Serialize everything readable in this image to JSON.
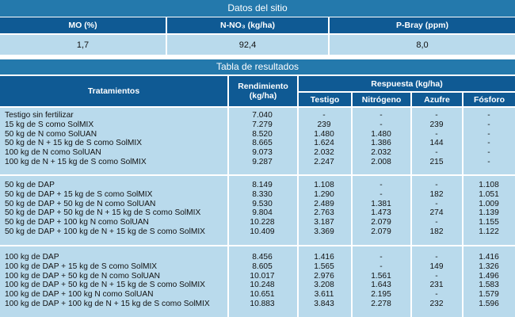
{
  "site": {
    "title": "Datos del sitio",
    "headers": [
      "MO (%)",
      "N-NO₃ (kg/ha)",
      "P-Bray (ppm)"
    ],
    "values": [
      "1,7",
      "92,4",
      "8,0"
    ]
  },
  "results": {
    "title": "Tabla de resultados",
    "col_tratamientos": "Tratamientos",
    "col_rendimiento": "Rendimiento (kg/ha)",
    "col_respuesta": "Respuesta (kg/ha)",
    "sub": [
      "Testigo",
      "Nitrógeno",
      "Azufre",
      "Fósforo"
    ],
    "groups": [
      [
        [
          "Testigo sin fertilizar",
          "7.040",
          "-",
          "-",
          "-",
          "-"
        ],
        [
          "15 kg de S como SolMIX",
          "7.279",
          "239",
          "-",
          "239",
          "-"
        ],
        [
          "50 kg de N como SolUAN",
          "8.520",
          "1.480",
          "1.480",
          "-",
          "-"
        ],
        [
          "50 kg de N + 15 kg de S como SolMIX",
          "8.665",
          "1.624",
          "1.386",
          "144",
          "-"
        ],
        [
          "100 kg de N como SolUAN",
          "9.073",
          "2.032",
          "2.032",
          "-",
          "-"
        ],
        [
          "100 kg de N + 15 kg de S como SolMIX",
          "9.287",
          "2.247",
          "2.008",
          "215",
          "-"
        ]
      ],
      [
        [
          "50 kg de DAP",
          "8.149",
          "1.108",
          "-",
          "-",
          "1.108"
        ],
        [
          "50 kg de DAP + 15 kg de S como SolMIX",
          "8.330",
          "1.290",
          "-",
          "182",
          "1.051"
        ],
        [
          "50 kg de DAP + 50 kg de N como SolUAN",
          "9.530",
          "2.489",
          "1.381",
          "-",
          "1.009"
        ],
        [
          "50 kg de DAP + 50 kg de N + 15 kg de S como SolMIX",
          "9.804",
          "2.763",
          "1.473",
          "274",
          "1.139"
        ],
        [
          "50 kg de DAP + 100 kg N como SolUAN",
          "10.228",
          "3.187",
          "2.079",
          "-",
          "1.155"
        ],
        [
          "50 kg de DAP + 100 kg de N + 15 kg de S como SolMIX",
          "10.409",
          "3.369",
          "2.079",
          "182",
          "1.122"
        ]
      ],
      [
        [
          "100 kg de DAP",
          "8.456",
          "1.416",
          "-",
          "-",
          "1.416"
        ],
        [
          "100 kg de DAP + 15 kg de S como SolMIX",
          "8.605",
          "1.565",
          "-",
          "149",
          "1.326"
        ],
        [
          "100 kg de DAP + 50 kg de N como SolUAN",
          "10.017",
          "2.976",
          "1.561",
          "-",
          "1.496"
        ],
        [
          "100 kg de DAP + 50 kg de N + 15 kg de S como SolMIX",
          "10.248",
          "3.208",
          "1.643",
          "231",
          "1.583"
        ],
        [
          "100 kg de DAP + 100 kg N como SolUAN",
          "10.651",
          "3.611",
          "2.195",
          "-",
          "1.579"
        ],
        [
          "100 kg de DAP + 100 kg de N + 15 kg de S como SolMIX",
          "10.883",
          "3.843",
          "2.278",
          "232",
          "1.596"
        ]
      ]
    ]
  }
}
